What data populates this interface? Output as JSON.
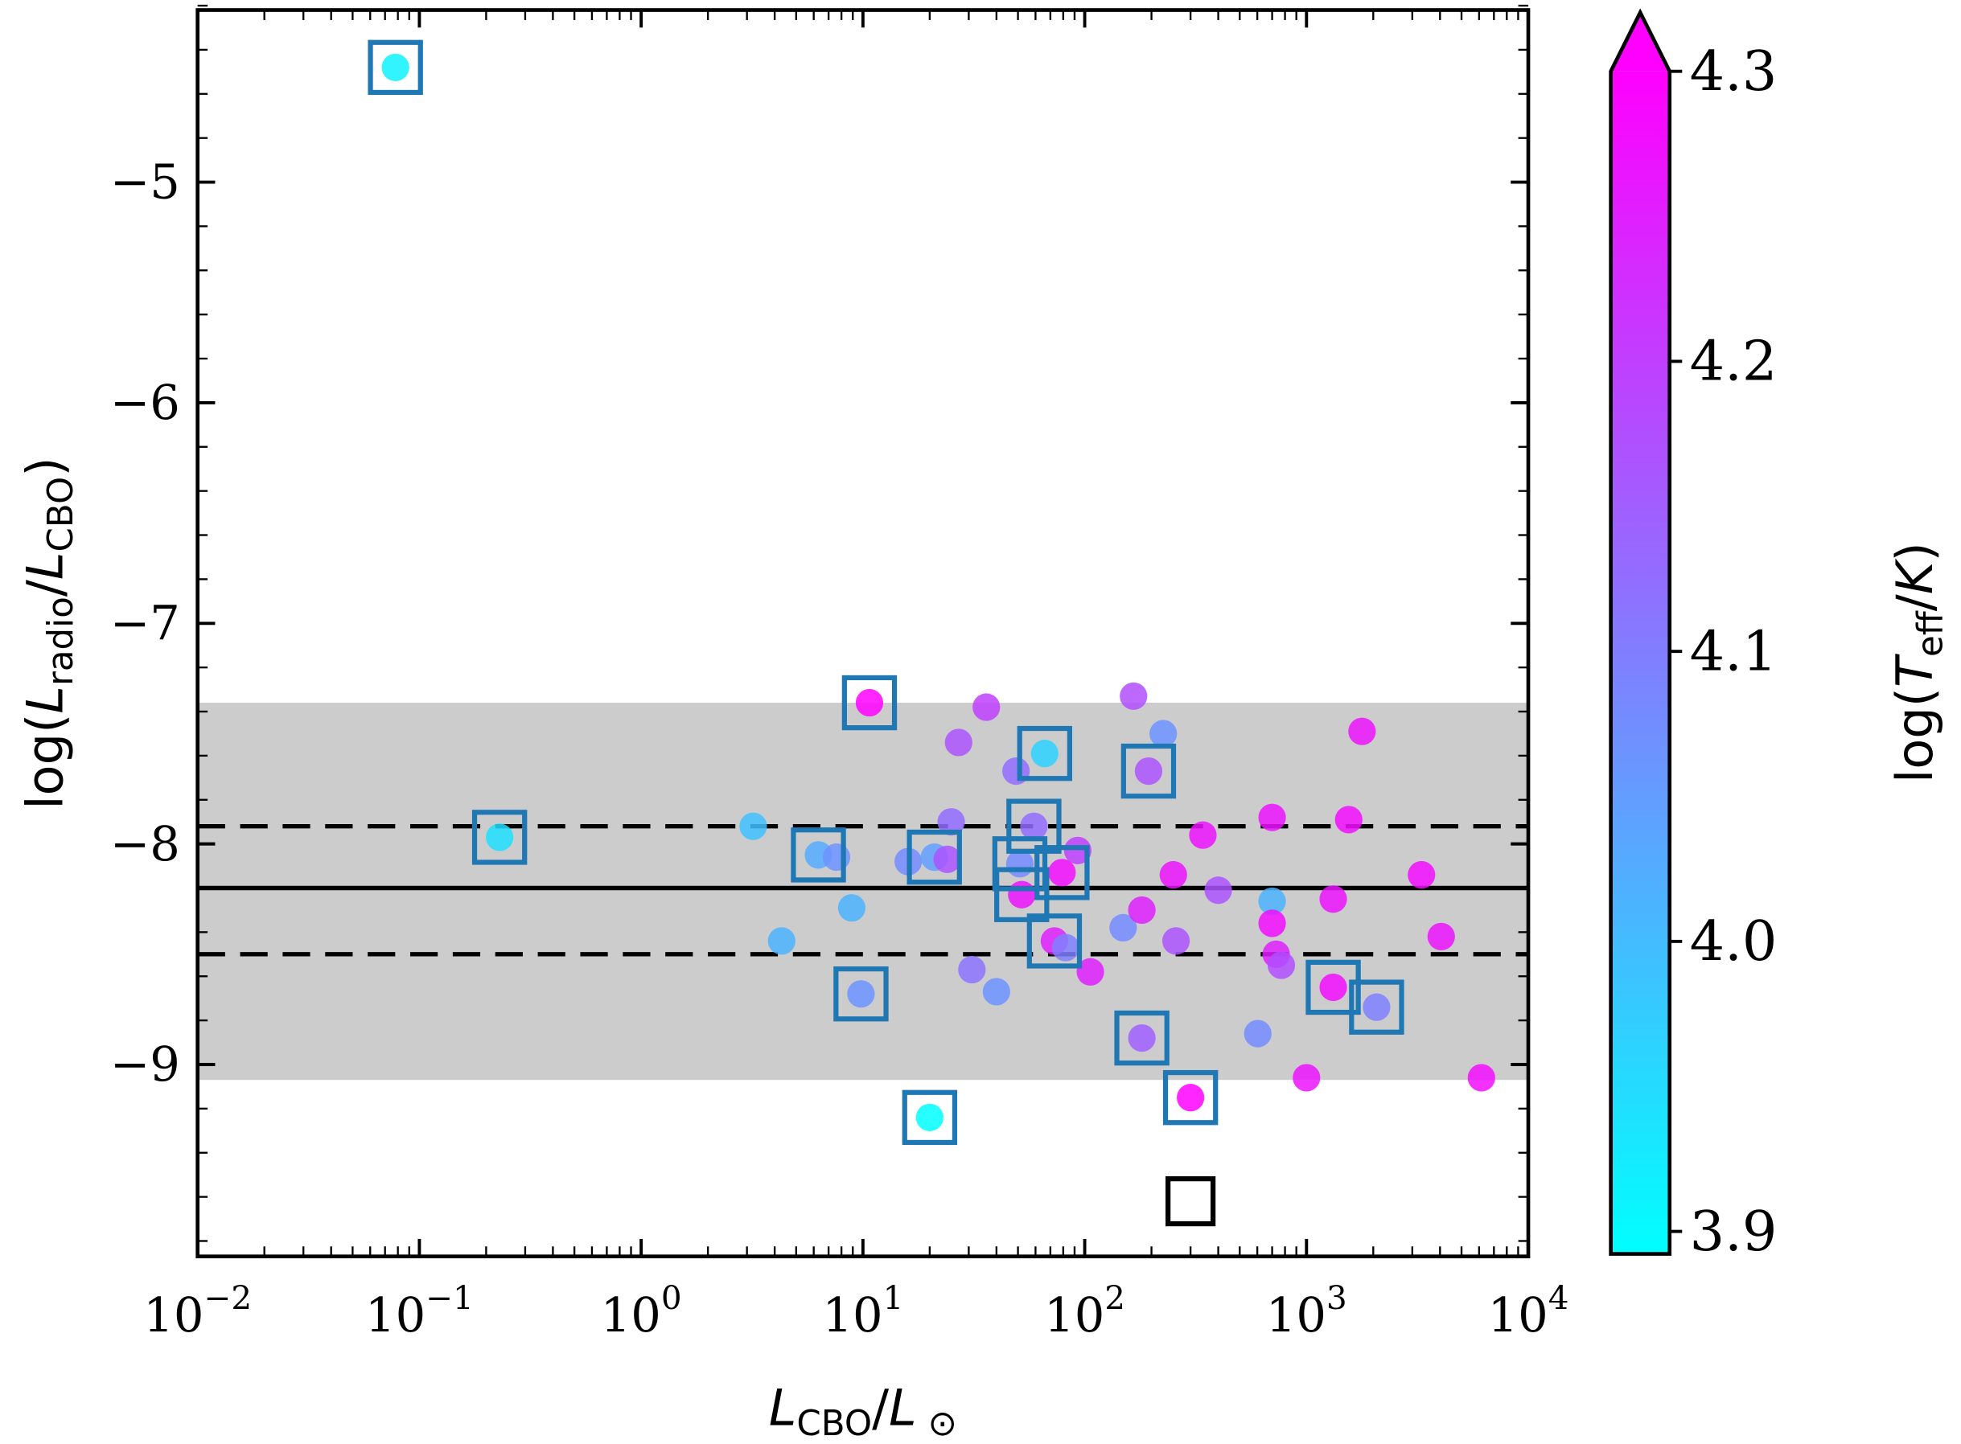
{
  "chart_data": {
    "type": "scatter",
    "xscale": "log",
    "xlim": [
      0.01,
      10000
    ],
    "ylim": [
      -9.87,
      -4.22
    ],
    "xticks": [
      0.01,
      0.1,
      1,
      10,
      100,
      1000,
      10000
    ],
    "xtick_labels": [
      [
        "10",
        "−2"
      ],
      [
        "10",
        "−1"
      ],
      [
        "10",
        "0"
      ],
      [
        "10",
        "1"
      ],
      [
        "10",
        "2"
      ],
      [
        "10",
        "3"
      ],
      [
        "10",
        "4"
      ]
    ],
    "yticks": [
      -5,
      -6,
      -7,
      -8,
      -9
    ],
    "ytick_labels": [
      "−5",
      "−6",
      "−7",
      "−8",
      "−9"
    ],
    "xlabel": [
      {
        "t": "L",
        "i": true
      },
      {
        "t": "CBO",
        "sub": true
      },
      {
        "t": "/"
      },
      {
        "t": "L",
        "i": true
      },
      {
        "t": " ⊙",
        "sub": true
      }
    ],
    "ylabel": [
      {
        "t": "log("
      },
      {
        "t": "L",
        "i": true
      },
      {
        "t": "radio",
        "sub": true
      },
      {
        "t": "/"
      },
      {
        "t": "L",
        "i": true
      },
      {
        "t": "CBO",
        "sub": true
      },
      {
        "t": ")"
      }
    ],
    "grid": false,
    "band": {
      "y_low": -9.07,
      "y_high": -7.36,
      "color": "#cccccc"
    },
    "hlines": [
      {
        "y": -8.2,
        "style": "solid"
      },
      {
        "y": -7.92,
        "style": "dashed"
      },
      {
        "y": -8.5,
        "style": "dashed"
      }
    ],
    "colorbar": {
      "colormap": "cool",
      "range": [
        3.9,
        4.3
      ],
      "extend": "max",
      "ticks": [
        3.9,
        4.0,
        4.1,
        4.2,
        4.3
      ],
      "tick_labels": [
        "3.9",
        "4.0",
        "4.1",
        "4.2",
        "4.3"
      ],
      "label": [
        {
          "t": "log("
        },
        {
          "t": "T",
          "i": true
        },
        {
          "t": "eff",
          "sub": true
        },
        {
          "t": "/"
        },
        {
          "t": "K",
          "i": true
        },
        {
          "t": ")"
        }
      ]
    },
    "box_color": "#1f77b4",
    "points": [
      {
        "x": 0.078,
        "y": -4.48,
        "c": 3.92,
        "boxed": true
      },
      {
        "x": 0.23,
        "y": -7.97,
        "c": 3.95,
        "boxed": true
      },
      {
        "x": 3.2,
        "y": -7.92,
        "c": 4.0,
        "boxed": false
      },
      {
        "x": 4.3,
        "y": -8.44,
        "c": 4.02,
        "boxed": false
      },
      {
        "x": 6.3,
        "y": -8.05,
        "c": 4.03,
        "boxed": true
      },
      {
        "x": 7.6,
        "y": -8.06,
        "c": 4.07,
        "boxed": false
      },
      {
        "x": 8.9,
        "y": -8.29,
        "c": 4.02,
        "boxed": false
      },
      {
        "x": 9.8,
        "y": -8.68,
        "c": 4.07,
        "boxed": true
      },
      {
        "x": 10.7,
        "y": -7.36,
        "c": 4.3,
        "boxed": true
      },
      {
        "x": 16,
        "y": -8.08,
        "c": 4.08,
        "boxed": false
      },
      {
        "x": 20,
        "y": -9.24,
        "c": 3.9,
        "boxed": true
      },
      {
        "x": 21,
        "y": -8.06,
        "c": 4.05,
        "boxed": true
      },
      {
        "x": 24,
        "y": -8.07,
        "c": 4.17,
        "boxed": false
      },
      {
        "x": 25,
        "y": -7.9,
        "c": 4.13,
        "boxed": false
      },
      {
        "x": 27,
        "y": -7.54,
        "c": 4.17,
        "boxed": false
      },
      {
        "x": 31,
        "y": -8.57,
        "c": 4.12,
        "boxed": false
      },
      {
        "x": 36,
        "y": -7.38,
        "c": 4.2,
        "boxed": false
      },
      {
        "x": 40,
        "y": -8.67,
        "c": 4.07,
        "boxed": false
      },
      {
        "x": 49,
        "y": -7.67,
        "c": 4.13,
        "boxed": false
      },
      {
        "x": 66,
        "y": -7.59,
        "c": 3.97,
        "boxed": true
      },
      {
        "x": 59,
        "y": -7.92,
        "c": 4.13,
        "boxed": true
      },
      {
        "x": 51,
        "y": -8.09,
        "c": 4.08,
        "boxed": true
      },
      {
        "x": 52,
        "y": -8.23,
        "c": 4.27,
        "boxed": true
      },
      {
        "x": 73,
        "y": -8.44,
        "c": 4.25,
        "boxed": true
      },
      {
        "x": 79,
        "y": -8.13,
        "c": 4.28,
        "boxed": true
      },
      {
        "x": 82,
        "y": -8.47,
        "c": 4.1,
        "boxed": false
      },
      {
        "x": 93,
        "y": -8.03,
        "c": 4.2,
        "boxed": false
      },
      {
        "x": 106,
        "y": -8.58,
        "c": 4.25,
        "boxed": false
      },
      {
        "x": 166,
        "y": -7.33,
        "c": 4.18,
        "boxed": false
      },
      {
        "x": 194,
        "y": -7.67,
        "c": 4.17,
        "boxed": true
      },
      {
        "x": 226,
        "y": -7.5,
        "c": 4.07,
        "boxed": false
      },
      {
        "x": 149,
        "y": -8.38,
        "c": 4.08,
        "boxed": false
      },
      {
        "x": 181,
        "y": -8.3,
        "c": 4.25,
        "boxed": false
      },
      {
        "x": 181,
        "y": -8.88,
        "c": 4.15,
        "boxed": true
      },
      {
        "x": 251,
        "y": -8.14,
        "c": 4.27,
        "boxed": false
      },
      {
        "x": 258,
        "y": -8.44,
        "c": 4.17,
        "boxed": false
      },
      {
        "x": 300,
        "y": -9.15,
        "c": 4.3,
        "boxed": true
      },
      {
        "x": 341,
        "y": -7.96,
        "c": 4.27,
        "boxed": false
      },
      {
        "x": 400,
        "y": -8.21,
        "c": 4.17,
        "boxed": false
      },
      {
        "x": 603,
        "y": -8.86,
        "c": 4.08,
        "boxed": false
      },
      {
        "x": 700,
        "y": -7.88,
        "c": 4.27,
        "boxed": false
      },
      {
        "x": 700,
        "y": -8.26,
        "c": 4.02,
        "boxed": false
      },
      {
        "x": 700,
        "y": -8.36,
        "c": 4.28,
        "boxed": false
      },
      {
        "x": 730,
        "y": -8.5,
        "c": 4.25,
        "boxed": false
      },
      {
        "x": 770,
        "y": -8.55,
        "c": 4.18,
        "boxed": false
      },
      {
        "x": 1000,
        "y": -9.06,
        "c": 4.27,
        "boxed": false
      },
      {
        "x": 1320,
        "y": -8.65,
        "c": 4.28,
        "boxed": true
      },
      {
        "x": 1320,
        "y": -8.25,
        "c": 4.27,
        "boxed": false
      },
      {
        "x": 1550,
        "y": -7.89,
        "c": 4.28,
        "boxed": false
      },
      {
        "x": 1780,
        "y": -7.49,
        "c": 4.27,
        "boxed": false
      },
      {
        "x": 2070,
        "y": -8.74,
        "c": 4.1,
        "boxed": true
      },
      {
        "x": 3300,
        "y": -8.14,
        "c": 4.28,
        "boxed": false
      },
      {
        "x": 4050,
        "y": -8.42,
        "c": 4.27,
        "boxed": false
      },
      {
        "x": 6150,
        "y": -9.06,
        "c": 4.28,
        "boxed": false
      }
    ],
    "open_markers": [
      {
        "x": 300,
        "y": -9.62,
        "color": "#000000"
      }
    ]
  }
}
